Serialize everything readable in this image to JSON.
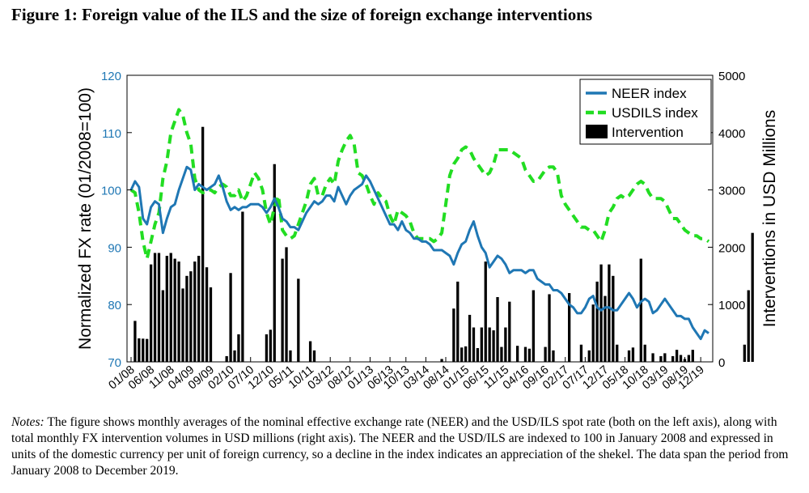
{
  "figure": {
    "title": "Figure 1: Foreign value of the ILS and the size of foreign exchange interventions",
    "notes_label": "Notes:",
    "notes_text": "The figure shows monthly averages of the nominal effective exchange rate (NEER) and the USD/ILS spot rate (both on the left axis), along with total monthly FX intervention volumes in USD millions (right axis). The NEER and the USD/ILS are indexed to 100 in January 2008 and expressed in units of the domestic currency per unit of foreign currency, so a decline in the index indicates an appreciation of the shekel. The data span the period from January 2008 to December 2019."
  },
  "colors": {
    "neer": "#1f77b4",
    "usdils": "#22dd22",
    "intervention": "#000000",
    "axis_left": "#1f77b4",
    "axis_right": "#000000"
  },
  "chart_data": {
    "type": "line+bar",
    "ylabel": "Normalized FX rate (01/2008=100)",
    "y2label": "Interventions in USD Millions",
    "ylim": [
      70,
      120
    ],
    "y2lim": [
      0,
      5000
    ],
    "yticks": [
      70,
      80,
      90,
      100,
      110,
      120
    ],
    "y2ticks": [
      0,
      1000,
      2000,
      3000,
      4000,
      5000
    ],
    "x_tick_labels": [
      "01/08",
      "06/08",
      "11/08",
      "04/09",
      "09/09",
      "02/10",
      "07/10",
      "12/10",
      "05/11",
      "10/11",
      "03/12",
      "08/12",
      "01/13",
      "06/13",
      "10/13",
      "03/14",
      "08/14",
      "01/15",
      "06/15",
      "11/15",
      "04/16",
      "09/16",
      "02/17",
      "07/17",
      "12/17",
      "05/18",
      "10/18",
      "03/19",
      "08/19",
      "12/19"
    ],
    "x_tick_month_index": [
      0,
      5,
      10,
      15,
      20,
      25,
      30,
      35,
      40,
      45,
      50,
      55,
      60,
      65,
      69,
      74,
      79,
      84,
      89,
      94,
      99,
      104,
      109,
      114,
      119,
      124,
      129,
      134,
      139,
      143
    ],
    "legend": [
      "NEER index",
      "USDILS index",
      "Intervention"
    ],
    "legend_position": "top-right",
    "series": [
      {
        "name": "NEER index",
        "type": "line",
        "values": [
          100,
          101.5,
          100.5,
          95,
          94,
          97,
          98,
          97.5,
          92.5,
          95,
          97,
          97.5,
          100,
          102,
          104,
          103.5,
          100,
          101,
          100.5,
          100,
          100.5,
          101,
          102.5,
          100.5,
          98,
          96.5,
          97,
          96.5,
          97,
          97,
          97.5,
          97.5,
          97.5,
          97,
          96,
          97,
          98.5,
          97,
          95,
          94.5,
          93.5,
          93.5,
          93,
          94.5,
          96,
          97,
          98,
          97.5,
          98,
          99,
          99,
          98,
          100.5,
          99,
          97.5,
          99,
          100,
          100.5,
          101,
          102.5,
          101.5,
          100,
          98.5,
          97,
          95.5,
          94,
          94,
          93,
          94.5,
          93,
          92.5,
          91.5,
          91.5,
          91,
          91,
          90.5,
          89.5,
          89.5,
          89.5,
          89,
          88.5,
          87,
          89,
          90.5,
          91,
          93,
          94.5,
          92,
          90,
          89,
          86.5,
          87.5,
          88.5,
          88,
          87,
          85.5,
          86,
          86,
          86,
          85.5,
          86,
          86,
          84.5,
          84,
          83.5,
          83.5,
          82.5,
          82.5,
          82,
          81,
          80,
          79.5,
          78.5,
          78.5,
          79.5,
          81,
          81.5,
          79.5,
          79,
          79.5,
          79.5,
          79,
          79,
          80,
          81,
          82,
          81,
          79.5,
          80.5,
          81,
          80.5,
          78.5,
          79,
          80,
          81,
          80,
          79,
          78,
          78,
          77.5,
          77.5,
          76,
          75,
          74,
          75.5,
          75
        ]
      },
      {
        "name": "USDILS index",
        "type": "line",
        "values": [
          100,
          99.5,
          96,
          91,
          88,
          91,
          94,
          96,
          102,
          105,
          110,
          112,
          114,
          113,
          110,
          108,
          102,
          100,
          99.5,
          100,
          100,
          99.5,
          100.5,
          101,
          100.5,
          99,
          99,
          100,
          98,
          99,
          101,
          103,
          102,
          100,
          96,
          94,
          97,
          99,
          93,
          92,
          91.5,
          92,
          94,
          96,
          98,
          101,
          102,
          99,
          99,
          101,
          102,
          101,
          105,
          107,
          108.5,
          109.5,
          108,
          103,
          102.5,
          101,
          99,
          97.5,
          99.5,
          98.5,
          98,
          95.5,
          94,
          96.5,
          96,
          95.5,
          94.5,
          92.5,
          91.5,
          91.5,
          91.5,
          91.5,
          91,
          91.5,
          92.5,
          97.5,
          102.5,
          104.5,
          105.5,
          107,
          107.5,
          107,
          105.5,
          104.5,
          103.5,
          102.5,
          103,
          104.5,
          107,
          107,
          107,
          107,
          106.5,
          106,
          105.5,
          103.5,
          102.5,
          101.5,
          101.5,
          102.5,
          103.5,
          104,
          104,
          103,
          99,
          97.5,
          96.5,
          95.5,
          94.5,
          93.5,
          93.5,
          93,
          93,
          92,
          91,
          93,
          96,
          97,
          98.5,
          99,
          98.5,
          99,
          100,
          101,
          101.5,
          101,
          99.5,
          98.5,
          98.5,
          98.5,
          98,
          96.5,
          95,
          95,
          94,
          93,
          92.5,
          92,
          92,
          91.5,
          91.5,
          91
        ]
      },
      {
        "name": "Intervention",
        "type": "bar",
        "values": [
          0,
          715,
          410,
          405,
          400,
          1700,
          1900,
          1900,
          1250,
          1850,
          1900,
          1800,
          1750,
          1280,
          1500,
          1580,
          1750,
          1850,
          4100,
          1650,
          1300,
          0,
          0,
          0,
          100,
          1550,
          200,
          480,
          2620,
          0,
          0,
          0,
          0,
          0,
          480,
          560,
          3450,
          0,
          1800,
          2000,
          200,
          0,
          1450,
          0,
          0,
          360,
          200,
          0,
          0,
          0,
          0,
          0,
          0,
          0,
          0,
          0,
          0,
          0,
          0,
          0,
          0,
          0,
          0,
          0,
          0,
          0,
          0,
          0,
          0,
          0,
          0,
          0,
          0,
          0,
          0,
          0,
          0,
          0,
          50,
          0,
          0,
          930,
          1400,
          250,
          270,
          820,
          600,
          240,
          600,
          1750,
          600,
          550,
          1130,
          260,
          600,
          1050,
          0,
          280,
          0,
          260,
          230,
          1250,
          0,
          0,
          260,
          1180,
          200,
          0,
          0,
          0,
          1200,
          0,
          0,
          300,
          0,
          200,
          1000,
          1400,
          1700,
          1150,
          1700,
          1500,
          300,
          0,
          0,
          200,
          250,
          0,
          1800,
          300,
          0,
          150,
          0,
          100,
          150,
          0,
          100,
          210,
          120,
          50,
          120,
          210,
          0,
          0,
          0,
          0,
          0,
          0,
          0,
          0,
          0,
          0,
          0,
          0,
          300,
          1250,
          2250
        ]
      }
    ]
  }
}
